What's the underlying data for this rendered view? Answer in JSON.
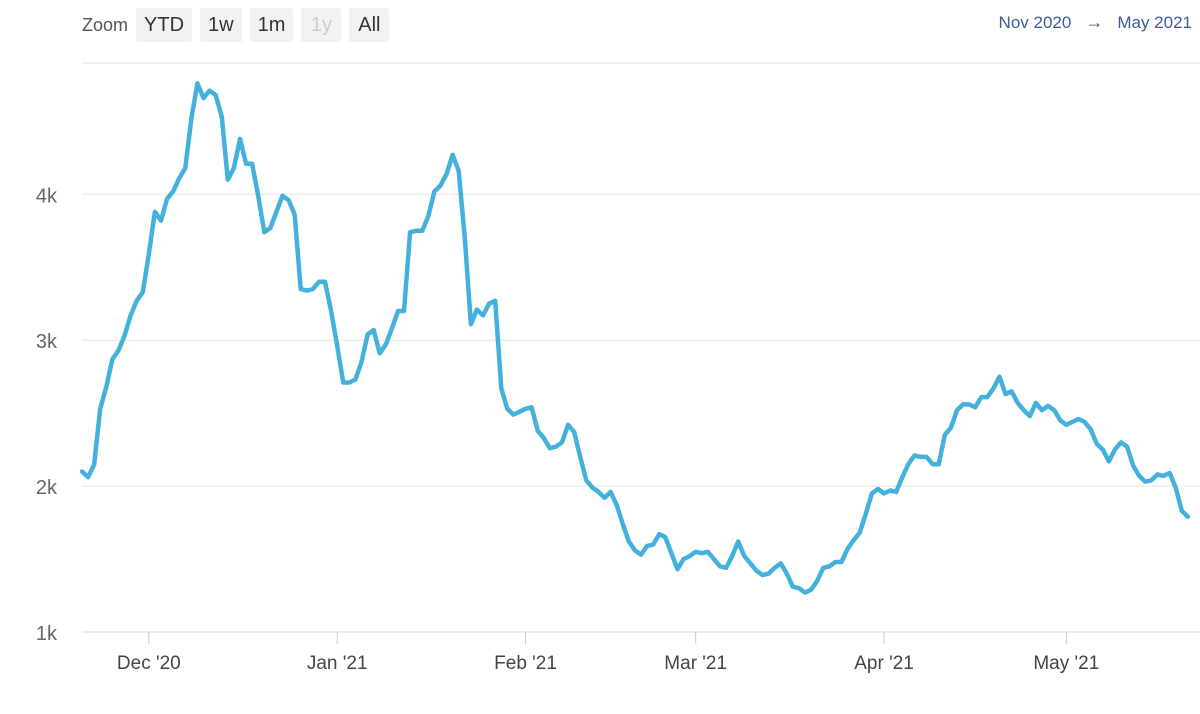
{
  "zoom": {
    "label": "Zoom",
    "buttons": [
      {
        "label": "YTD",
        "enabled": true
      },
      {
        "label": "1w",
        "enabled": true
      },
      {
        "label": "1m",
        "enabled": true
      },
      {
        "label": "1y",
        "enabled": false
      },
      {
        "label": "All",
        "enabled": true
      }
    ]
  },
  "range": {
    "from": "Nov 2020",
    "arrow": "→",
    "to": "May 2021"
  },
  "colors": {
    "line": "#44b0dc",
    "grid": "#e6e6e6",
    "text": "#666666"
  },
  "chart_data": {
    "type": "line",
    "title": "",
    "xlabel": "",
    "ylabel": "",
    "xlim": [
      "2020-11-20",
      "2021-05-23"
    ],
    "ylim": [
      1000,
      4900
    ],
    "grid": true,
    "y_ticks": [
      {
        "value": 1000,
        "label": "1k"
      },
      {
        "value": 2000,
        "label": "2k"
      },
      {
        "value": 3000,
        "label": "3k"
      },
      {
        "value": 4000,
        "label": "4k"
      }
    ],
    "x_ticks": [
      {
        "date": "2020-12-01",
        "label": "Dec '20"
      },
      {
        "date": "2021-01-01",
        "label": "Jan '21"
      },
      {
        "date": "2021-02-01",
        "label": "Feb '21"
      },
      {
        "date": "2021-03-01",
        "label": "Mar '21"
      },
      {
        "date": "2021-04-01",
        "label": "Apr '21"
      },
      {
        "date": "2021-05-01",
        "label": "May '21"
      }
    ],
    "series": [
      {
        "values": [
          [
            "2020-11-20",
            2100
          ],
          [
            "2020-11-21",
            2060
          ],
          [
            "2020-11-22",
            2150
          ],
          [
            "2020-11-23",
            2530
          ],
          [
            "2020-11-24",
            2680
          ],
          [
            "2020-11-25",
            2870
          ],
          [
            "2020-11-26",
            2930
          ],
          [
            "2020-11-27",
            3030
          ],
          [
            "2020-11-28",
            3170
          ],
          [
            "2020-11-29",
            3270
          ],
          [
            "2020-11-30",
            3330
          ],
          [
            "2020-12-01",
            3590
          ],
          [
            "2020-12-02",
            3880
          ],
          [
            "2020-12-03",
            3820
          ],
          [
            "2020-12-04",
            3970
          ],
          [
            "2020-12-05",
            4020
          ],
          [
            "2020-12-06",
            4110
          ],
          [
            "2020-12-07",
            4180
          ],
          [
            "2020-12-08",
            4520
          ],
          [
            "2020-12-09",
            4760
          ],
          [
            "2020-12-10",
            4660
          ],
          [
            "2020-12-11",
            4710
          ],
          [
            "2020-12-12",
            4680
          ],
          [
            "2020-12-13",
            4530
          ],
          [
            "2020-12-14",
            4100
          ],
          [
            "2020-12-15",
            4180
          ],
          [
            "2020-12-16",
            4380
          ],
          [
            "2020-12-17",
            4210
          ],
          [
            "2020-12-18",
            4210
          ],
          [
            "2020-12-19",
            3990
          ],
          [
            "2020-12-20",
            3740
          ],
          [
            "2020-12-21",
            3770
          ],
          [
            "2020-12-22",
            3880
          ],
          [
            "2020-12-23",
            3990
          ],
          [
            "2020-12-24",
            3960
          ],
          [
            "2020-12-25",
            3860
          ],
          [
            "2020-12-26",
            3350
          ],
          [
            "2020-12-27",
            3340
          ],
          [
            "2020-12-28",
            3350
          ],
          [
            "2020-12-29",
            3400
          ],
          [
            "2020-12-30",
            3400
          ],
          [
            "2020-12-31",
            3200
          ],
          [
            "2021-01-01",
            2960
          ],
          [
            "2021-01-02",
            2710
          ],
          [
            "2021-01-03",
            2710
          ],
          [
            "2021-01-04",
            2730
          ],
          [
            "2021-01-05",
            2850
          ],
          [
            "2021-01-06",
            3040
          ],
          [
            "2021-01-07",
            3070
          ],
          [
            "2021-01-08",
            2910
          ],
          [
            "2021-01-09",
            2970
          ],
          [
            "2021-01-10",
            3080
          ],
          [
            "2021-01-11",
            3200
          ],
          [
            "2021-01-12",
            3200
          ],
          [
            "2021-01-13",
            3740
          ],
          [
            "2021-01-14",
            3750
          ],
          [
            "2021-01-15",
            3750
          ],
          [
            "2021-01-16",
            3850
          ],
          [
            "2021-01-17",
            4020
          ],
          [
            "2021-01-18",
            4060
          ],
          [
            "2021-01-19",
            4140
          ],
          [
            "2021-01-20",
            4270
          ],
          [
            "2021-01-21",
            4160
          ],
          [
            "2021-01-22",
            3700
          ],
          [
            "2021-01-23",
            3110
          ],
          [
            "2021-01-24",
            3210
          ],
          [
            "2021-01-25",
            3170
          ],
          [
            "2021-01-26",
            3250
          ],
          [
            "2021-01-27",
            3270
          ],
          [
            "2021-01-28",
            2670
          ],
          [
            "2021-01-29",
            2530
          ],
          [
            "2021-01-30",
            2490
          ],
          [
            "2021-01-31",
            2510
          ],
          [
            "2021-02-01",
            2530
          ],
          [
            "2021-02-02",
            2540
          ],
          [
            "2021-02-03",
            2380
          ],
          [
            "2021-02-04",
            2330
          ],
          [
            "2021-02-05",
            2260
          ],
          [
            "2021-02-06",
            2270
          ],
          [
            "2021-02-07",
            2300
          ],
          [
            "2021-02-08",
            2420
          ],
          [
            "2021-02-09",
            2370
          ],
          [
            "2021-02-10",
            2200
          ],
          [
            "2021-02-11",
            2040
          ],
          [
            "2021-02-12",
            1990
          ],
          [
            "2021-02-13",
            1960
          ],
          [
            "2021-02-14",
            1920
          ],
          [
            "2021-02-15",
            1960
          ],
          [
            "2021-02-16",
            1870
          ],
          [
            "2021-02-17",
            1740
          ],
          [
            "2021-02-18",
            1620
          ],
          [
            "2021-02-19",
            1560
          ],
          [
            "2021-02-20",
            1530
          ],
          [
            "2021-02-21",
            1590
          ],
          [
            "2021-02-22",
            1600
          ],
          [
            "2021-02-23",
            1670
          ],
          [
            "2021-02-24",
            1650
          ],
          [
            "2021-02-25",
            1540
          ],
          [
            "2021-02-26",
            1430
          ],
          [
            "2021-02-27",
            1500
          ],
          [
            "2021-02-28",
            1520
          ],
          [
            "2021-03-01",
            1550
          ],
          [
            "2021-03-02",
            1540
          ],
          [
            "2021-03-03",
            1550
          ],
          [
            "2021-03-04",
            1500
          ],
          [
            "2021-03-05",
            1450
          ],
          [
            "2021-03-06",
            1440
          ],
          [
            "2021-03-07",
            1520
          ],
          [
            "2021-03-08",
            1620
          ],
          [
            "2021-03-09",
            1520
          ],
          [
            "2021-03-10",
            1470
          ],
          [
            "2021-03-11",
            1420
          ],
          [
            "2021-03-12",
            1390
          ],
          [
            "2021-03-13",
            1400
          ],
          [
            "2021-03-14",
            1440
          ],
          [
            "2021-03-15",
            1470
          ],
          [
            "2021-03-16",
            1400
          ],
          [
            "2021-03-17",
            1310
          ],
          [
            "2021-03-18",
            1300
          ],
          [
            "2021-03-19",
            1270
          ],
          [
            "2021-03-20",
            1290
          ],
          [
            "2021-03-21",
            1350
          ],
          [
            "2021-03-22",
            1440
          ],
          [
            "2021-03-23",
            1450
          ],
          [
            "2021-03-24",
            1480
          ],
          [
            "2021-03-25",
            1480
          ],
          [
            "2021-03-26",
            1570
          ],
          [
            "2021-03-27",
            1630
          ],
          [
            "2021-03-28",
            1680
          ],
          [
            "2021-03-29",
            1810
          ],
          [
            "2021-03-30",
            1950
          ],
          [
            "2021-03-31",
            1980
          ],
          [
            "2021-04-01",
            1950
          ],
          [
            "2021-04-02",
            1970
          ],
          [
            "2021-04-03",
            1960
          ],
          [
            "2021-04-04",
            2060
          ],
          [
            "2021-04-05",
            2150
          ],
          [
            "2021-04-06",
            2210
          ],
          [
            "2021-04-07",
            2200
          ],
          [
            "2021-04-08",
            2200
          ],
          [
            "2021-04-09",
            2150
          ],
          [
            "2021-04-10",
            2150
          ],
          [
            "2021-04-11",
            2350
          ],
          [
            "2021-04-12",
            2400
          ],
          [
            "2021-04-13",
            2520
          ],
          [
            "2021-04-14",
            2560
          ],
          [
            "2021-04-15",
            2560
          ],
          [
            "2021-04-16",
            2540
          ],
          [
            "2021-04-17",
            2610
          ],
          [
            "2021-04-18",
            2610
          ],
          [
            "2021-04-19",
            2670
          ],
          [
            "2021-04-20",
            2750
          ],
          [
            "2021-04-21",
            2630
          ],
          [
            "2021-04-22",
            2650
          ],
          [
            "2021-04-23",
            2570
          ],
          [
            "2021-04-24",
            2520
          ],
          [
            "2021-04-25",
            2480
          ],
          [
            "2021-04-26",
            2570
          ],
          [
            "2021-04-27",
            2520
          ],
          [
            "2021-04-28",
            2550
          ],
          [
            "2021-04-29",
            2520
          ],
          [
            "2021-04-30",
            2450
          ],
          [
            "2021-05-01",
            2420
          ],
          [
            "2021-05-02",
            2440
          ],
          [
            "2021-05-03",
            2460
          ],
          [
            "2021-05-04",
            2440
          ],
          [
            "2021-05-05",
            2390
          ],
          [
            "2021-05-06",
            2290
          ],
          [
            "2021-05-07",
            2250
          ],
          [
            "2021-05-08",
            2170
          ],
          [
            "2021-05-09",
            2250
          ],
          [
            "2021-05-10",
            2300
          ],
          [
            "2021-05-11",
            2270
          ],
          [
            "2021-05-12",
            2140
          ],
          [
            "2021-05-13",
            2070
          ],
          [
            "2021-05-14",
            2030
          ],
          [
            "2021-05-15",
            2040
          ],
          [
            "2021-05-16",
            2080
          ],
          [
            "2021-05-17",
            2070
          ],
          [
            "2021-05-18",
            2090
          ],
          [
            "2021-05-19",
            1990
          ],
          [
            "2021-05-20",
            1830
          ],
          [
            "2021-05-21",
            1790
          ]
        ]
      }
    ]
  }
}
